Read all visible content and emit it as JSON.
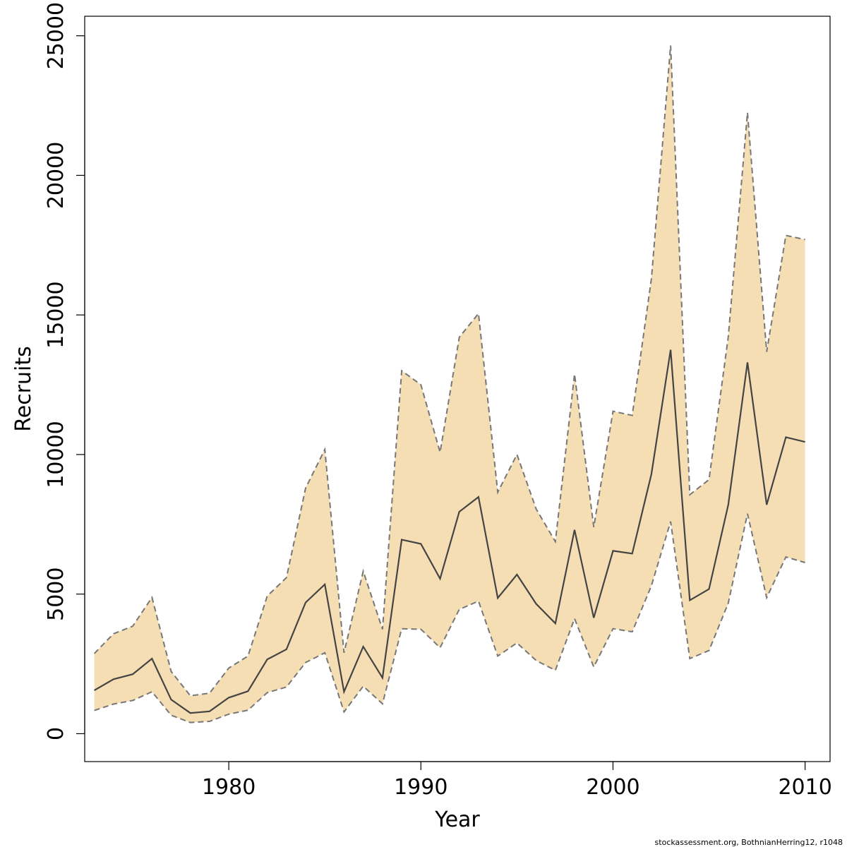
{
  "chart_data": {
    "type": "area",
    "xlabel": "Year",
    "ylabel": "Recruits",
    "xlim": [
      1972.5,
      2011.3
    ],
    "ylim": [
      -1000,
      25700
    ],
    "x_ticks": [
      1980,
      1990,
      2000,
      2010
    ],
    "y_ticks": [
      0,
      5000,
      10000,
      15000,
      20000,
      25000
    ],
    "grid": false,
    "colors": {
      "band": "#f5deb3",
      "band_edge": "#777777",
      "line": "#444444"
    },
    "series": [
      {
        "x": [
          1973,
          1974,
          1975,
          1976,
          1977,
          1978,
          1979,
          1980,
          1981,
          1982,
          1983,
          1984,
          1985,
          1986,
          1987,
          1988,
          1989,
          1990,
          1991,
          1992,
          1993,
          1994,
          1995,
          1996,
          1997,
          1998,
          1999,
          2000,
          2001,
          2002,
          2003,
          2004,
          2005,
          2006,
          2007,
          2008,
          2009,
          2010
        ],
        "values": [
          1550,
          1950,
          2130,
          2690,
          1220,
          740,
          800,
          1290,
          1520,
          2660,
          3020,
          4700,
          5350,
          1500,
          3120,
          2000,
          6950,
          6800,
          5550,
          7950,
          8480,
          4860,
          5700,
          4650,
          3950,
          7300,
          4150,
          6550,
          6450,
          9300,
          13750,
          4780,
          5180,
          8200,
          13300,
          8200,
          10620,
          10450
        ],
        "lower": [
          830,
          1060,
          1190,
          1500,
          660,
          400,
          440,
          700,
          840,
          1470,
          1670,
          2550,
          2900,
          780,
          1700,
          1070,
          3760,
          3740,
          3080,
          4450,
          4750,
          2780,
          3250,
          2620,
          2270,
          4120,
          2390,
          3760,
          3650,
          5300,
          7600,
          2690,
          2980,
          4680,
          7880,
          4870,
          6330,
          6130
        ],
        "upper": [
          2870,
          3580,
          3850,
          4880,
          2230,
          1360,
          1450,
          2350,
          2780,
          4930,
          5590,
          8800,
          10180,
          2900,
          5820,
          3740,
          13000,
          12500,
          10080,
          14200,
          15050,
          8650,
          10000,
          8050,
          6880,
          12880,
          7400,
          11550,
          11400,
          16300,
          24650,
          8560,
          9100,
          14220,
          22250,
          13680,
          17850,
          17700
        ]
      }
    ],
    "footnote": "stockassessment.org, BothnianHerring12, r1048"
  }
}
